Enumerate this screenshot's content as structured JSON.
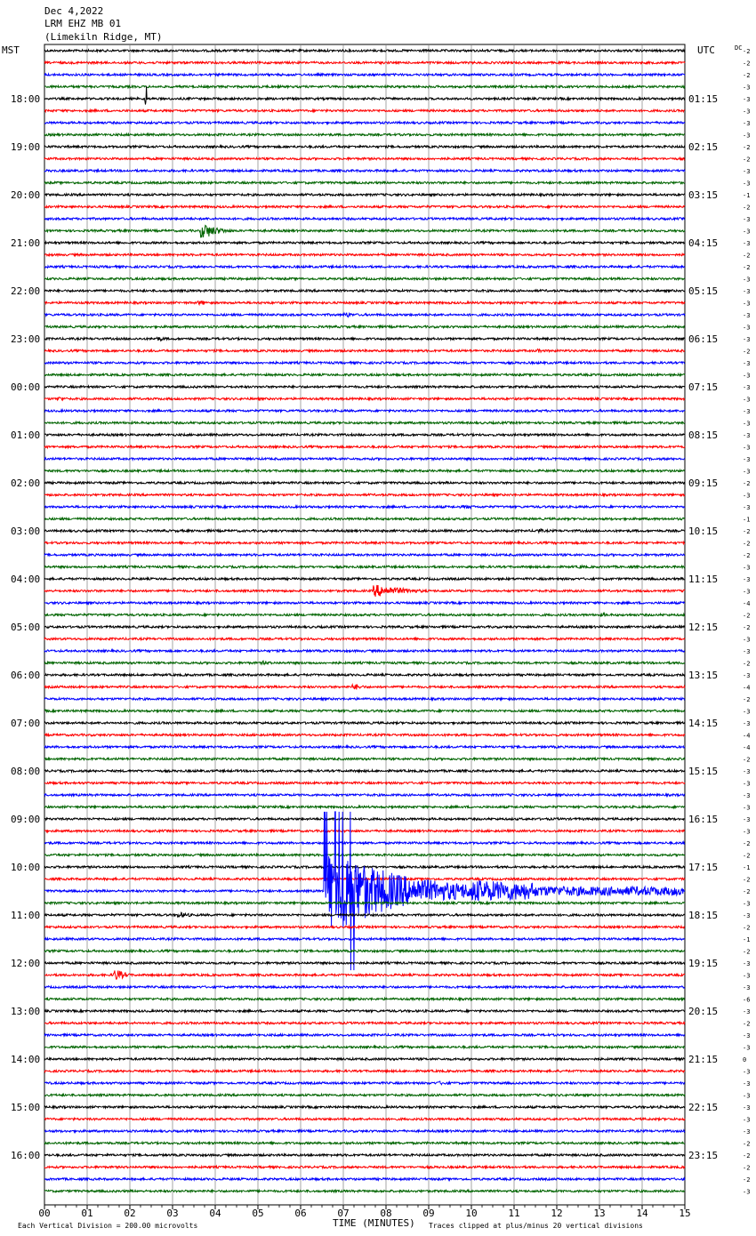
{
  "header": {
    "date": "Dec 4,2022",
    "station": "LRM EHZ MB 01",
    "location": "(Limekiln Ridge, MT)"
  },
  "left_zone": "MST",
  "right_zone": "UTC",
  "dc_label": "DC",
  "footer": {
    "left": "Each Vertical Division =  200.00 microvolts",
    "xlabel": "TIME (MINUTES)",
    "right": "Traces clipped at plus/minus 20 vertical divisions"
  },
  "colors": {
    "seq": [
      "#000000",
      "#ff0000",
      "#0000ff",
      "#006400"
    ],
    "grid": "#808080"
  },
  "chart_data": {
    "type": "line",
    "title": "LRM EHZ MB 01",
    "xlabel": "TIME (MINUTES)",
    "xlim": [
      0,
      15
    ],
    "x_ticks": [
      "00",
      "01",
      "02",
      "03",
      "04",
      "05",
      "06",
      "07",
      "08",
      "09",
      "10",
      "11",
      "12",
      "13",
      "14",
      "15"
    ],
    "left_hour_labels": [
      "18:00",
      "19:00",
      "20:00",
      "21:00",
      "22:00",
      "23:00",
      "00:00",
      "01:00",
      "02:00",
      "03:00",
      "04:00",
      "05:00",
      "06:00",
      "07:00",
      "08:00",
      "09:00",
      "10:00",
      "11:00",
      "12:00",
      "13:00",
      "14:00",
      "15:00",
      "16:00"
    ],
    "right_hour_labels": [
      "01:15",
      "02:15",
      "03:15",
      "04:15",
      "05:15",
      "06:15",
      "07:15",
      "08:15",
      "09:15",
      "10:15",
      "11:15",
      "12:15",
      "13:15",
      "14:15",
      "15:15",
      "16:15",
      "17:15",
      "18:15",
      "19:15",
      "20:15",
      "21:15",
      "22:15",
      "23:15"
    ],
    "trace_count": 96,
    "trace_offsets": [
      -2,
      -2,
      -2,
      -3,
      -3,
      -3,
      -3,
      -3,
      -2,
      -2,
      -3,
      -3,
      -1,
      -2,
      -3,
      -3,
      -3,
      -2,
      -2,
      -3,
      -3,
      -3,
      -3,
      -3,
      -3,
      -2,
      -3,
      -3,
      -3,
      -3,
      -3,
      -3,
      -3,
      -3,
      -3,
      -3,
      -2,
      -3,
      -3,
      -1,
      -2,
      -2,
      -2,
      -3,
      -3,
      -3,
      -4,
      -2,
      -2,
      -3,
      -3,
      -2,
      -3,
      -4,
      -2,
      -3,
      -3,
      -4,
      -4,
      -2,
      -3,
      -3,
      -3,
      -3,
      -3,
      -3,
      -2,
      -2,
      -1,
      -2,
      -2,
      -3,
      -3,
      -2,
      -1,
      -2,
      -3,
      -3,
      -3,
      -6,
      -3,
      -2,
      -3,
      -3,
      0,
      -3,
      -3,
      -3,
      -3,
      -3,
      -3,
      -2,
      -2,
      -2,
      -2,
      -3
    ],
    "events": [
      {
        "trace": 4,
        "minute": 2.35,
        "amplitude": 2.4,
        "duration": 0.05
      },
      {
        "trace": 15,
        "minute": 3.65,
        "amplitude": 1.2,
        "duration": 1.0
      },
      {
        "trace": 21,
        "minute": 3.6,
        "amplitude": 0.35,
        "duration": 0.6
      },
      {
        "trace": 22,
        "minute": 7.0,
        "amplitude": 0.4,
        "duration": 0.4
      },
      {
        "trace": 24,
        "minute": 2.6,
        "amplitude": 0.35,
        "duration": 0.6
      },
      {
        "trace": 25,
        "minute": 11.5,
        "amplitude": 0.3,
        "duration": 0.6
      },
      {
        "trace": 29,
        "minute": 0.3,
        "amplitude": 0.35,
        "duration": 0.4
      },
      {
        "trace": 38,
        "minute": 9.8,
        "amplitude": 0.3,
        "duration": 1.2
      },
      {
        "trace": 40,
        "minute": 11.5,
        "amplitude": 0.35,
        "duration": 0.4
      },
      {
        "trace": 43,
        "minute": 12.5,
        "amplitude": 0.3,
        "duration": 0.3
      },
      {
        "trace": 45,
        "minute": 7.7,
        "amplitude": 1.0,
        "duration": 2.0
      },
      {
        "trace": 47,
        "minute": 13.0,
        "amplitude": 0.3,
        "duration": 0.4
      },
      {
        "trace": 51,
        "minute": 5.1,
        "amplitude": 0.35,
        "duration": 0.4
      },
      {
        "trace": 53,
        "minute": 7.2,
        "amplitude": 0.45,
        "duration": 0.7
      },
      {
        "trace": 70,
        "minute": 6.55,
        "amplitude": 6.0,
        "duration": 8.5
      },
      {
        "trace": 72,
        "minute": 3.1,
        "amplitude": 0.45,
        "duration": 0.9
      },
      {
        "trace": 77,
        "minute": 1.6,
        "amplitude": 0.9,
        "duration": 0.6
      },
      {
        "trace": 86,
        "minute": 9.2,
        "amplitude": 0.3,
        "duration": 1.0
      }
    ]
  }
}
